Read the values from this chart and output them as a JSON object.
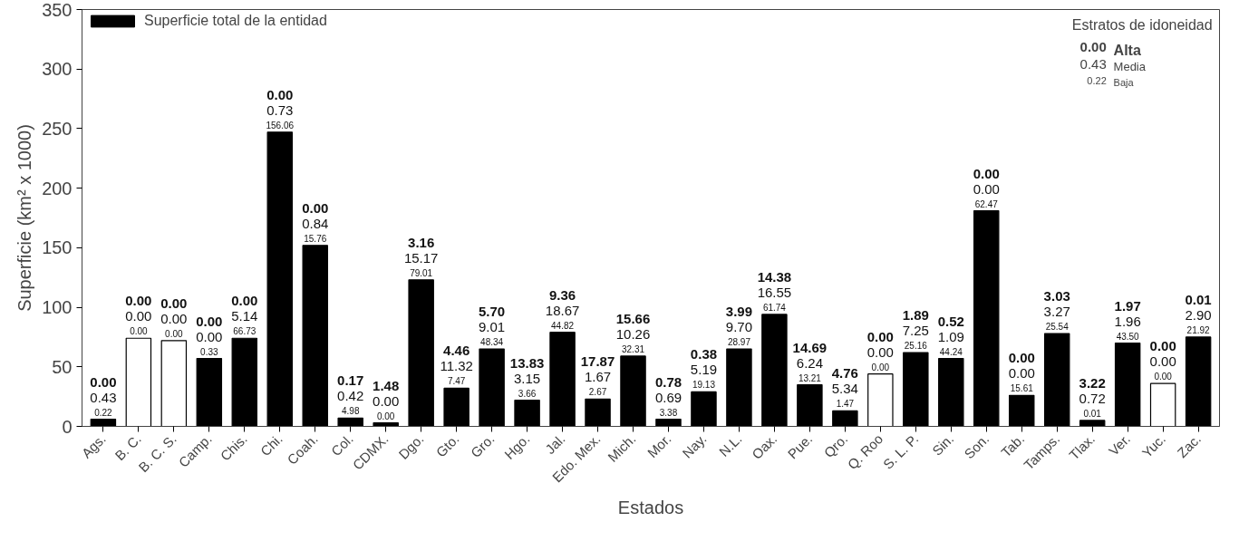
{
  "chart_data": {
    "type": "bar",
    "xlabel": "Estados",
    "ylabel": "Superficie (km² x 1000)",
    "categories": [
      "Ags.",
      "B. C.",
      "B. C. S.",
      "Camp.",
      "Chis.",
      "Chi.",
      "Coah.",
      "Col.",
      "CDMX.",
      "Dgo.",
      "Gto.",
      "Gro.",
      "Hgo.",
      "Jal.",
      "Edo. Mex.",
      "Mich.",
      "Mor.",
      "Nay.",
      "N.L.",
      "Oax.",
      "Pue.",
      "Qro.",
      "Q. Roo",
      "S. L. P.",
      "Sin.",
      "Son.",
      "Tab.",
      "Tamps.",
      "Tlax.",
      "Ver.",
      "Yuc.",
      "Zac."
    ],
    "series": [
      {
        "name": "Superficie total de la entidad",
        "color": "#000000",
        "colors": [
          "#000000",
          "#ffffff",
          "#ffffff",
          "#000000",
          "#000000",
          "#000000",
          "#000000",
          "#000000",
          "#000000",
          "#000000",
          "#000000",
          "#000000",
          "#000000",
          "#000000",
          "#000000",
          "#000000",
          "#000000",
          "#000000",
          "#000000",
          "#000000",
          "#000000",
          "#000000",
          "#ffffff",
          "#000000",
          "#000000",
          "#000000",
          "#000000",
          "#000000",
          "#000000",
          "#000000",
          "#ffffff",
          "#000000"
        ],
        "values": [
          6,
          74,
          72,
          57,
          74,
          247,
          152,
          7,
          3,
          123,
          32,
          65,
          22,
          79,
          23,
          59,
          6,
          29,
          65,
          94,
          35,
          13,
          44,
          62,
          57,
          181,
          26,
          78,
          5,
          70,
          36,
          75
        ]
      }
    ],
    "ylim": [
      0,
      350
    ],
    "yticks": [
      0,
      50,
      100,
      150,
      200,
      250,
      300,
      350
    ],
    "grid": false,
    "legend": "top left",
    "annotations": [
      "0.00",
      "0.43",
      "0.22",
      "0.00",
      "0.00",
      "0.00",
      "0.00",
      "0.00",
      "0.00",
      "0.00",
      "0.00",
      "0.33",
      "0.00",
      "5.14",
      "66.73",
      "0.00",
      "0.73",
      "156.06",
      "0.00",
      "0.84",
      "15.76",
      "0.17",
      "0.42",
      "4.98",
      "1.48",
      "0.00",
      "0.00",
      "3.16",
      "15.17",
      "79.01",
      "4.46",
      "11.32",
      "7.47",
      "5.70",
      "9.01",
      "48.34",
      "13.83",
      "3.15",
      "3.66",
      "9.36",
      "18.67",
      "44.82",
      "17.87",
      "1.67",
      "2.67",
      "15.66",
      "10.26",
      "32.31",
      "0.78",
      "0.69",
      "3.38",
      "0.38",
      "5.19",
      "19.13",
      "3.99",
      "9.70",
      "28.97",
      "14.38",
      "16.55",
      "61.74",
      "14.69",
      "6.24",
      "13.21",
      "4.76",
      "5.34",
      "1.47",
      "0.00",
      "0.00",
      "0.00",
      "1.89",
      "7.25",
      "25.16",
      "0.52",
      "1.09",
      "44.24",
      "0.00",
      "0.00",
      "62.47",
      "0.00",
      "0.00",
      "15.61",
      "3.03",
      "3.27",
      "25.54",
      "3.22",
      "0.72",
      "0.01",
      "1.97",
      "1.96",
      "43.50",
      "0.00",
      "0.00",
      "0.00",
      "0.01",
      "2.90",
      "21.92",
      "Estratos de idoneidad",
      "0.00",
      "Alta",
      "0.43",
      "Media",
      "0.22",
      "Baja"
    ]
  }
}
